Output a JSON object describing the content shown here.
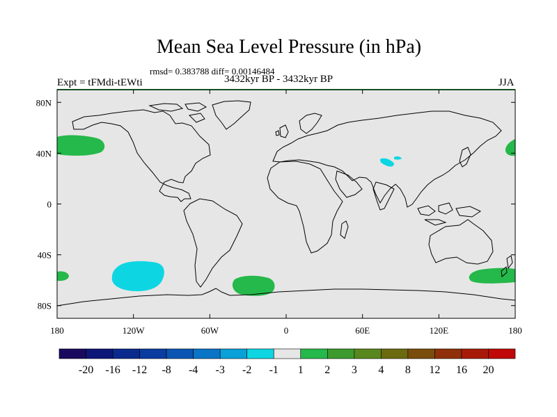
{
  "chart_data": {
    "type": "heatmap",
    "title": "Mean Sea Level Pressure (in hPa)",
    "stats_line": "rmsd= 0.383788 diff= 0.00146484",
    "left_label": "Expt = tFMdi-tEWti",
    "center_label": "3432kyr BP - 3432kyr BP",
    "right_label": "JJA",
    "x_ticks": [
      {
        "value": -180,
        "label": "180"
      },
      {
        "value": -120,
        "label": "120W"
      },
      {
        "value": -60,
        "label": "60W"
      },
      {
        "value": 0,
        "label": "0"
      },
      {
        "value": 60,
        "label": "60E"
      },
      {
        "value": 120,
        "label": "120E"
      },
      {
        "value": 180,
        "label": "180"
      }
    ],
    "y_ticks": [
      {
        "value": 80,
        "label": "80N"
      },
      {
        "value": 40,
        "label": "40N"
      },
      {
        "value": 0,
        "label": "0"
      },
      {
        "value": -40,
        "label": "40S"
      },
      {
        "value": -80,
        "label": "80S"
      }
    ],
    "xlim": [
      -180,
      180
    ],
    "ylim": [
      -90,
      90
    ],
    "colorbar": {
      "boundaries": [
        "-20",
        "-16",
        "-12",
        "-8",
        "-4",
        "-3",
        "-2",
        "-1",
        "1",
        "2",
        "3",
        "4",
        "8",
        "12",
        "16",
        "20"
      ],
      "colors": [
        "#1a0a5e",
        "#0d1778",
        "#0a2a8e",
        "#0b3ca0",
        "#0a55b4",
        "#0a74c6",
        "#0aa0d8",
        "#0dd6e2",
        "#e6e6e6",
        "#25b84a",
        "#3d9a2e",
        "#58871d",
        "#6c6a0f",
        "#7a4d0c",
        "#8f300a",
        "#a81a08",
        "#c00808"
      ]
    },
    "regions": [
      {
        "name": "north-pacific-east-high",
        "level": "1 to 2",
        "color": "#25b84a",
        "lon_range": [
          -180,
          -150
        ],
        "lat_range": [
          35,
          48
        ]
      },
      {
        "name": "north-pacific-west-high",
        "level": "1 to 2",
        "color": "#25b84a",
        "lon_range": [
          171,
          180
        ],
        "lat_range": [
          35,
          47
        ]
      },
      {
        "name": "tibet-low",
        "level": "-2 to -1",
        "color": "#0dd6e2",
        "lon_range": [
          82,
          98
        ],
        "lat_range": [
          28,
          37
        ]
      },
      {
        "name": "south-pacific-low",
        "level": "-2 to -1",
        "color": "#0dd6e2",
        "lon_range": [
          -135,
          -100
        ],
        "lat_range": [
          -66,
          -45
        ]
      },
      {
        "name": "south-atlantic-high",
        "level": "1 to 2",
        "color": "#25b84a",
        "lon_range": [
          -45,
          -13
        ],
        "lat_range": [
          -70,
          -55
        ]
      },
      {
        "name": "south-pacific-west-high",
        "level": "1 to 2",
        "color": "#25b84a",
        "lon_range": [
          -180,
          -168
        ],
        "lat_range": [
          -60,
          -53
        ]
      },
      {
        "name": "south-tasman-high",
        "level": "1 to 2",
        "color": "#25b84a",
        "lon_range": [
          147,
          180
        ],
        "lat_range": [
          -60,
          -50
        ]
      }
    ],
    "background_level": "-1 to 1"
  }
}
